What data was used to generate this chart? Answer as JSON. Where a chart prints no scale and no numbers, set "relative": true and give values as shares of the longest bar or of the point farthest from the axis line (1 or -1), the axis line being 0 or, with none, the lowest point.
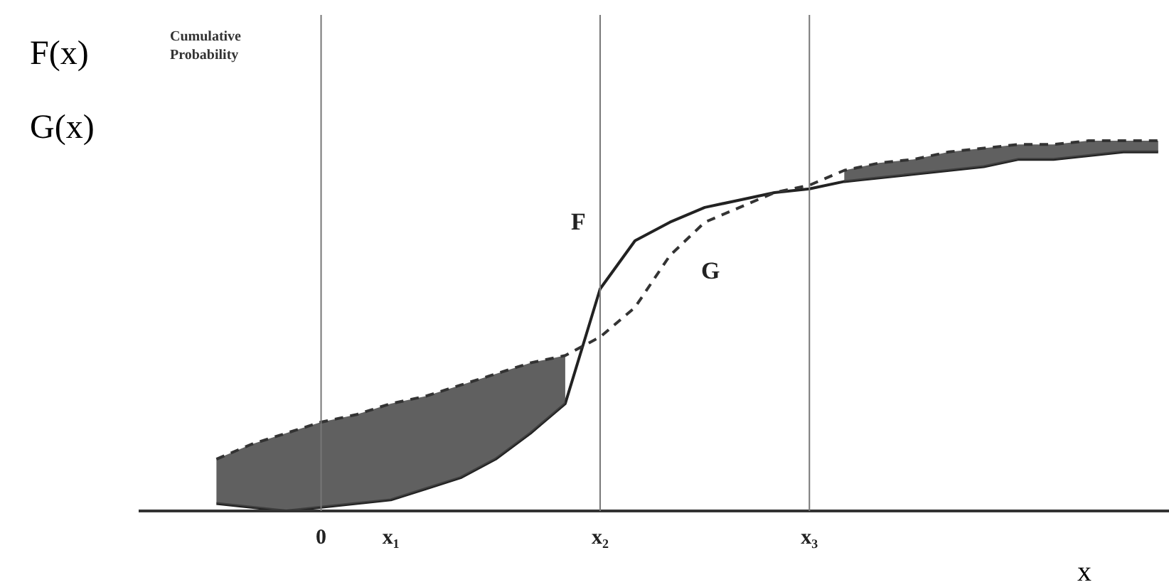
{
  "chart_data": {
    "type": "line",
    "relative": true,
    "xlabel": "x",
    "annotations": [
      "F(x)",
      "Cumulative Probability",
      "G(x)"
    ],
    "categories": [
      null,
      null,
      null,
      null,
      "0",
      null,
      "x₁",
      null,
      null,
      null,
      null,
      null,
      "x₂",
      null,
      null,
      null,
      null,
      null,
      "x₃",
      null,
      null,
      null,
      null,
      null,
      null,
      null,
      null,
      null,
      null
    ],
    "ref_lines": [
      {
        "axis": "x",
        "value": "0",
        "color": "#777777"
      },
      {
        "axis": "x",
        "value": "x₂",
        "color": "#777777"
      },
      {
        "axis": "x",
        "value": "x₃",
        "color": "#777777"
      }
    ],
    "grid": false,
    "legend": false,
    "series": [
      {
        "name": "F",
        "color": "#222222",
        "line_style": "solid",
        "values": [
          null,
          0.02,
          0.01,
          0.0,
          0.01,
          0.02,
          0.03,
          0.06,
          0.09,
          0.14,
          0.21,
          0.29,
          0.6,
          0.73,
          0.78,
          0.82,
          0.84,
          0.86,
          0.87,
          0.89,
          0.9,
          0.91,
          0.92,
          0.93,
          0.95,
          0.95,
          0.96,
          0.97,
          0.97
        ]
      },
      {
        "name": "G",
        "color": "#333333",
        "line_style": "dashed",
        "values": [
          null,
          0.14,
          0.18,
          0.21,
          0.24,
          0.26,
          0.29,
          0.31,
          0.34,
          0.37,
          0.4,
          0.42,
          0.47,
          0.55,
          0.69,
          0.78,
          0.82,
          0.86,
          0.88,
          0.92,
          0.94,
          0.95,
          0.97,
          0.98,
          0.99,
          0.99,
          1.0,
          1.0,
          1.0
        ],
        "lower": [
          null,
          0.02,
          0.01,
          0.0,
          0.01,
          0.02,
          0.03,
          0.06,
          0.09,
          0.14,
          0.21,
          0.29,
          null,
          null,
          null,
          null,
          null,
          null,
          null,
          0.89,
          0.9,
          0.91,
          0.92,
          0.93,
          0.95,
          0.95,
          0.96,
          0.97,
          0.97
        ],
        "upper": [
          null,
          0.14,
          0.18,
          0.21,
          0.24,
          0.26,
          0.29,
          0.31,
          0.34,
          0.37,
          0.4,
          0.42,
          null,
          null,
          null,
          null,
          null,
          null,
          null,
          0.92,
          0.94,
          0.95,
          0.97,
          0.98,
          0.99,
          0.99,
          1.0,
          1.0,
          1.0
        ]
      }
    ]
  }
}
